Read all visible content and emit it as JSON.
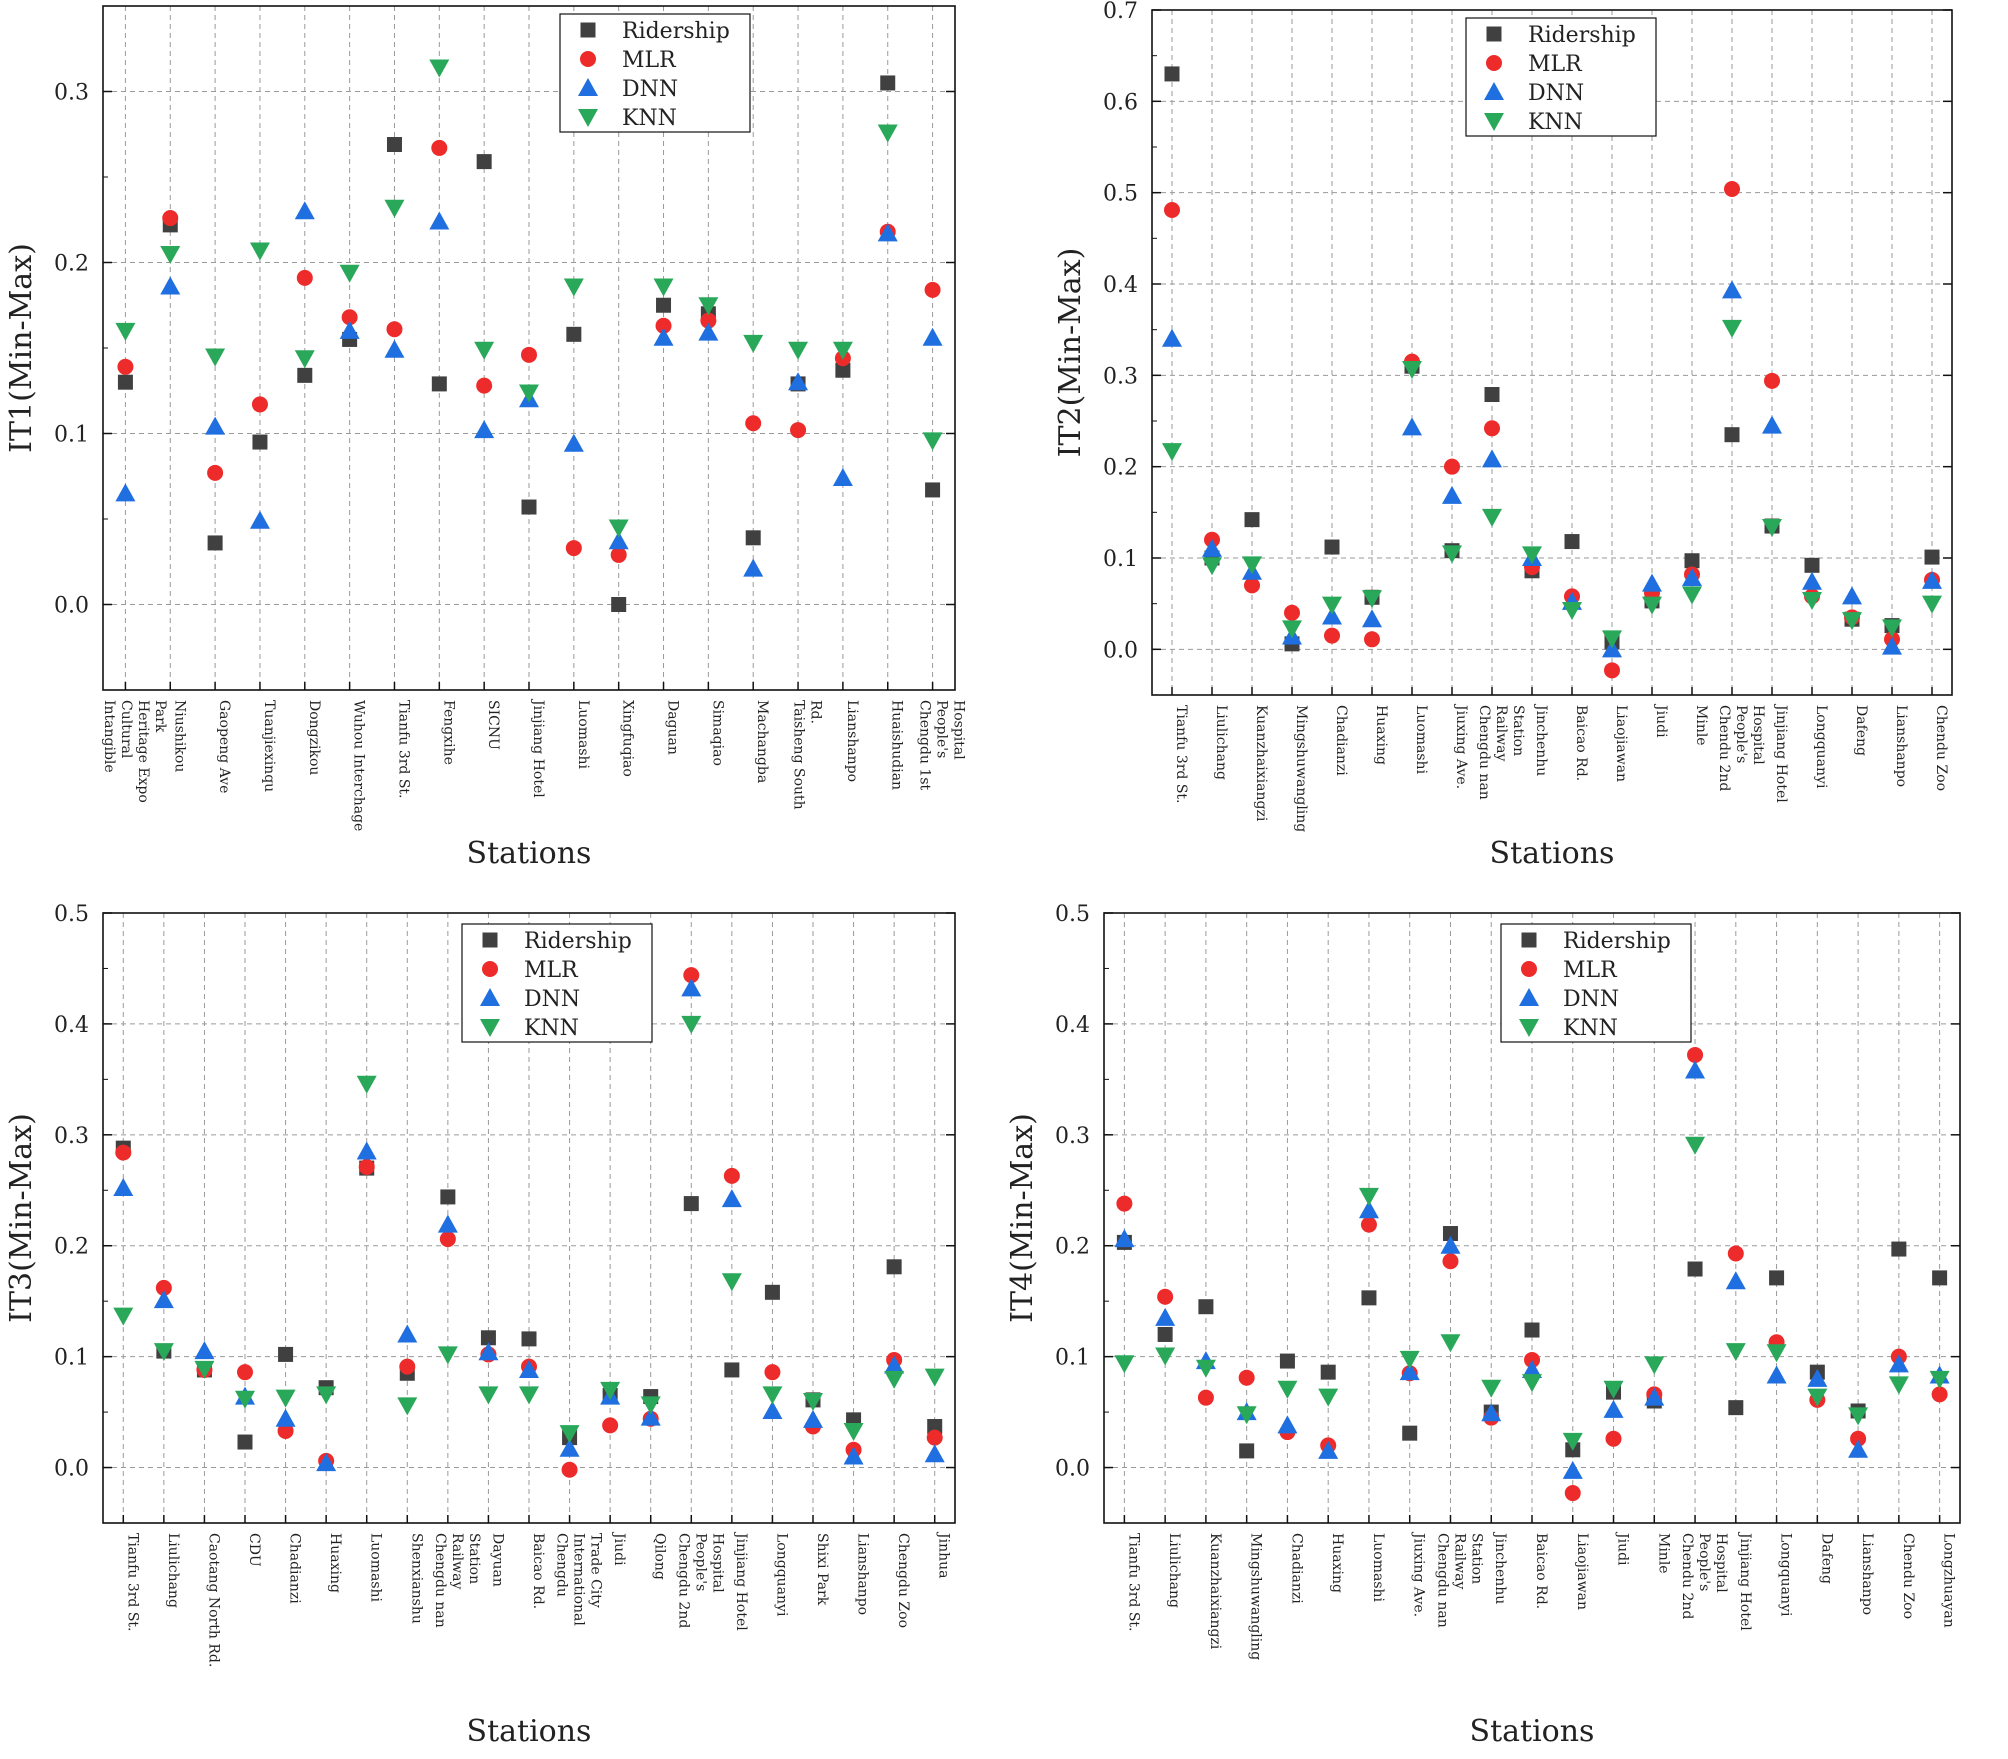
{
  "legend_labels": [
    "Ridership",
    "MLR",
    "DNN",
    "KNN"
  ],
  "colors": {
    "ridership": "#404040",
    "mlr": "#ee2b2b",
    "dnn": "#1f6fe0",
    "knn": "#2aa85a"
  },
  "chart_data": [
    {
      "type": "scatter",
      "ylabel": "IT1(Min-Max)",
      "xlabel": "Stations",
      "ylim": [
        -0.05,
        0.35
      ],
      "yticks": [
        0.0,
        0.1,
        0.2,
        0.3
      ],
      "legend_position": "top-center",
      "categories": [
        "Intangible Cultural Heritage Expo Park",
        "Niushikou",
        "Gaopeng Ave",
        "Tuanjiexinqu",
        "Dongzikou",
        "Wuhou Interchage",
        "Tianfu 3rd St.",
        "Fengxihe",
        "SICNU",
        "Jinjiang Hotel",
        "Luomashi",
        "Xingfuqiao",
        "Daguan",
        "Simaqiao",
        "Machangba",
        "Taisheng South Rd.",
        "Lianshanpo",
        "Huaishudian",
        "Chengdu 1st People's Hospital"
      ],
      "series": [
        {
          "name": "Ridership",
          "values": [
            0.13,
            0.222,
            0.036,
            0.095,
            0.134,
            0.155,
            0.269,
            0.129,
            0.259,
            0.057,
            0.158,
            0.0,
            0.175,
            0.17,
            0.039,
            0.129,
            0.137,
            0.305,
            0.067
          ]
        },
        {
          "name": "MLR",
          "values": [
            0.139,
            0.226,
            0.077,
            0.117,
            0.191,
            0.168,
            0.161,
            0.267,
            0.128,
            0.146,
            0.033,
            0.029,
            0.163,
            0.166,
            0.106,
            0.102,
            0.144,
            0.218,
            0.184
          ]
        },
        {
          "name": "DNN",
          "values": [
            0.065,
            0.186,
            0.104,
            0.049,
            0.23,
            0.16,
            0.149,
            0.224,
            0.102,
            0.12,
            0.094,
            0.037,
            0.156,
            0.159,
            0.021,
            0.13,
            0.074,
            0.217,
            0.156
          ]
        },
        {
          "name": "KNN",
          "values": [
            0.16,
            0.205,
            0.145,
            0.207,
            0.144,
            0.194,
            0.232,
            0.314,
            0.149,
            0.124,
            0.186,
            0.045,
            0.186,
            0.175,
            0.153,
            0.149,
            0.149,
            0.276,
            0.096
          ]
        }
      ]
    },
    {
      "type": "scatter",
      "ylabel": "IT2(Min-Max)",
      "xlabel": "Stations",
      "ylim": [
        -0.05,
        0.7
      ],
      "yticks": [
        0.0,
        0.1,
        0.2,
        0.3,
        0.4,
        0.5,
        0.6,
        0.7
      ],
      "legend_position": "top-center",
      "categories": [
        "Tianfu 3rd St.",
        "Liulichang",
        "Kuanzhaixiangzi",
        "Mingshuwangling",
        "Chadianzi",
        "Huaxing",
        "Luomashi",
        "Jiuxing Ave.",
        "Chengdu nan Railway Station",
        "Jinchenhu",
        "Baicao Rd.",
        "Liaojiawan",
        "Jiudi",
        "Minle",
        "Chendu 2nd People's Hospital",
        "Jinjiang Hotel",
        "Longquanyi",
        "Dafeng",
        "Lianshanpo",
        "Chendu Zoo"
      ],
      "series": [
        {
          "name": "Ridership",
          "values": [
            0.63,
            0.1,
            0.142,
            0.006,
            0.112,
            0.057,
            0.31,
            0.108,
            0.279,
            0.086,
            0.118,
            0.008,
            0.053,
            0.097,
            0.235,
            0.135,
            0.092,
            0.033,
            0.026,
            0.101
          ]
        },
        {
          "name": "MLR",
          "values": [
            0.481,
            0.12,
            0.07,
            0.04,
            0.015,
            0.011,
            0.315,
            0.2,
            0.242,
            0.09,
            0.058,
            -0.023,
            0.062,
            0.082,
            0.504,
            0.294,
            0.058,
            0.035,
            0.011,
            0.076
          ]
        },
        {
          "name": "DNN",
          "values": [
            0.34,
            0.11,
            0.085,
            0.014,
            0.036,
            0.033,
            0.243,
            0.168,
            0.208,
            0.1,
            0.052,
            0.0,
            0.072,
            0.078,
            0.393,
            0.245,
            0.074,
            0.058,
            0.003,
            0.075
          ]
        },
        {
          "name": "KNN",
          "values": [
            0.217,
            0.092,
            0.093,
            0.023,
            0.049,
            0.056,
            0.307,
            0.105,
            0.145,
            0.104,
            0.043,
            0.012,
            0.049,
            0.06,
            0.352,
            0.134,
            0.054,
            0.032,
            0.024,
            0.05
          ]
        }
      ]
    },
    {
      "type": "scatter",
      "ylabel": "IT3(Min-Max)",
      "xlabel": "Stations",
      "ylim": [
        -0.05,
        0.5
      ],
      "yticks": [
        0.0,
        0.1,
        0.2,
        0.3,
        0.4,
        0.5
      ],
      "legend_position": "top-center",
      "categories": [
        "Tianfu 3rd St.",
        "Liulichang",
        "Caotang North Rd.",
        "CDU",
        "Chadianzi",
        "Huaxing",
        "Luomashi",
        "Shenxianshu",
        "Chengdu nan Railway Station",
        "Dayuan",
        "Baicao Rd.",
        "Chengdu International Trade City",
        "Jiudi",
        "Qilong",
        "Chengdu 2nd People's Hospital",
        "Jinjiang Hotel",
        "Longquanyi",
        "Shixi Park",
        "Lianshanpo",
        "Chengdu Zoo",
        "Jinhua"
      ],
      "series": [
        {
          "name": "Ridership",
          "values": [
            0.288,
            0.105,
            0.088,
            0.023,
            0.102,
            0.072,
            0.27,
            0.085,
            0.244,
            0.117,
            0.116,
            0.027,
            0.065,
            0.064,
            0.238,
            0.088,
            0.158,
            0.061,
            0.043,
            0.181,
            0.037
          ]
        },
        {
          "name": "MLR",
          "values": [
            0.284,
            0.162,
            0.088,
            0.086,
            0.033,
            0.006,
            0.271,
            0.091,
            0.206,
            0.102,
            0.091,
            -0.002,
            0.038,
            0.044,
            0.444,
            0.263,
            0.086,
            0.037,
            0.016,
            0.097,
            0.027
          ]
        },
        {
          "name": "DNN",
          "values": [
            0.252,
            0.151,
            0.105,
            0.064,
            0.044,
            0.004,
            0.285,
            0.12,
            0.219,
            0.104,
            0.088,
            0.017,
            0.064,
            0.045,
            0.432,
            0.242,
            0.051,
            0.043,
            0.01,
            0.092,
            0.012
          ]
        },
        {
          "name": "KNN",
          "values": [
            0.137,
            0.105,
            0.089,
            0.062,
            0.063,
            0.066,
            0.346,
            0.056,
            0.102,
            0.066,
            0.066,
            0.031,
            0.07,
            0.057,
            0.4,
            0.168,
            0.066,
            0.06,
            0.033,
            0.08,
            0.082
          ]
        }
      ]
    },
    {
      "type": "scatter",
      "ylabel": "IT4(Min-Max)",
      "xlabel": "Stations",
      "ylim": [
        -0.05,
        0.5
      ],
      "yticks": [
        0.0,
        0.1,
        0.2,
        0.3,
        0.4,
        0.5
      ],
      "legend_position": "top-center",
      "categories": [
        "Tianfu 3rd St.",
        "Liulichang",
        "Kuanzhaixiangzi",
        "Mingshuwangling",
        "Chadianzi",
        "Huaxing",
        "Luomashi",
        "Jiuxing Ave.",
        "Chengdu nan Railway Station",
        "Jinchenhu",
        "Baicao Rd.",
        "Liaojiawan",
        "Jiudi",
        "Minle",
        "Chendu 2nd People's Hospital",
        "Jinjiang Hotel",
        "Longquanyi",
        "Dafeng",
        "Lianshanpo",
        "Chendu Zoo",
        "Longzhuayan"
      ],
      "series": [
        {
          "name": "Ridership",
          "values": [
            0.203,
            0.12,
            0.145,
            0.015,
            0.096,
            0.086,
            0.153,
            0.031,
            0.211,
            0.05,
            0.124,
            0.016,
            0.068,
            0.06,
            0.179,
            0.054,
            0.171,
            0.086,
            0.051,
            0.197,
            0.171
          ]
        },
        {
          "name": "MLR",
          "values": [
            0.238,
            0.154,
            0.063,
            0.081,
            0.032,
            0.02,
            0.219,
            0.085,
            0.186,
            0.045,
            0.097,
            -0.023,
            0.026,
            0.066,
            0.372,
            0.193,
            0.113,
            0.061,
            0.026,
            0.1,
            0.066
          ]
        },
        {
          "name": "DNN",
          "values": [
            0.206,
            0.135,
            0.096,
            0.05,
            0.038,
            0.015,
            0.232,
            0.086,
            0.2,
            0.049,
            0.088,
            -0.003,
            0.052,
            0.063,
            0.358,
            0.168,
            0.083,
            0.08,
            0.016,
            0.093,
            0.083
          ]
        },
        {
          "name": "KNN",
          "values": [
            0.094,
            0.101,
            0.09,
            0.048,
            0.071,
            0.064,
            0.245,
            0.098,
            0.113,
            0.072,
            0.077,
            0.024,
            0.071,
            0.093,
            0.291,
            0.105,
            0.104,
            0.064,
            0.047,
            0.075,
            0.08
          ]
        }
      ]
    }
  ]
}
